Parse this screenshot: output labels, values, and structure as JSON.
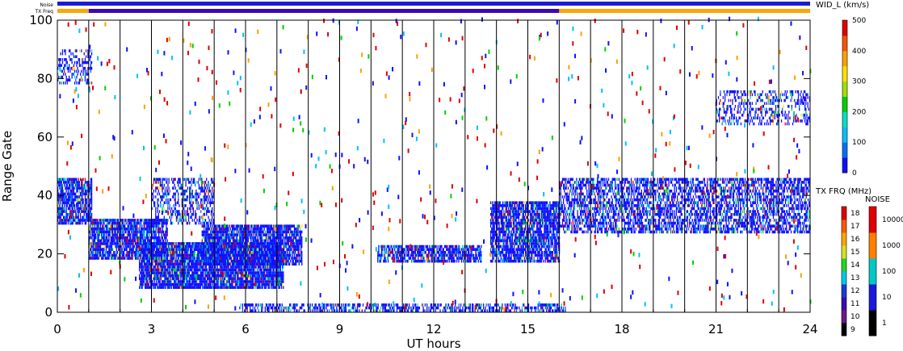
{
  "chart_data": {
    "type": "heatmap",
    "xlabel": "UT hours",
    "ylabel": "Range Gate",
    "xlim": [
      0,
      24
    ],
    "ylim": [
      0,
      100
    ],
    "x_ticks": [
      "0",
      "3",
      "6",
      "9",
      "12",
      "15",
      "18",
      "21",
      "24"
    ],
    "y_ticks": [
      "0",
      "20",
      "40",
      "60",
      "80",
      "100"
    ],
    "hour_lines": [
      1,
      2,
      3,
      4,
      5,
      6,
      7,
      8,
      9,
      10,
      11,
      12,
      13,
      14,
      15,
      16,
      17,
      18,
      19,
      20,
      21,
      22,
      23
    ],
    "top_bars": {
      "noise_label": "Noise",
      "txfreq_label": "TX Freq",
      "noise_color": "#1a1ad8",
      "txfreq_segments": [
        {
          "start": 0,
          "end": 1,
          "color": "#ffa500"
        },
        {
          "start": 1,
          "end": 16,
          "color": "#3a0ab0"
        },
        {
          "start": 16,
          "end": 24,
          "color": "#ffa500"
        }
      ]
    },
    "scatter_regions": [
      {
        "name": "low-gates-band",
        "t0": 5.8,
        "t1": 16.2,
        "g0": 0,
        "g1": 3,
        "density": 0.55
      },
      {
        "name": "early-band",
        "t0": 0,
        "t1": 1.1,
        "g0": 30,
        "g1": 46,
        "density": 0.8
      },
      {
        "name": "morning-band",
        "t0": 1,
        "t1": 3.5,
        "g0": 18,
        "g1": 32,
        "density": 0.85
      },
      {
        "name": "arc-lower",
        "t0": 2.6,
        "t1": 7.2,
        "g0": 8,
        "g1": 24,
        "density": 0.9
      },
      {
        "name": "arc-upper",
        "t0": 4.6,
        "t1": 7.8,
        "g0": 16,
        "g1": 30,
        "density": 0.85
      },
      {
        "name": "mid-diag",
        "t0": 3,
        "t1": 5,
        "g0": 30,
        "g1": 46,
        "density": 0.45
      },
      {
        "name": "noon-band",
        "t0": 10.2,
        "t1": 13.5,
        "g0": 17,
        "g1": 23,
        "density": 0.75
      },
      {
        "name": "afternoon-band",
        "t0": 13.8,
        "t1": 16,
        "g0": 17,
        "g1": 38,
        "density": 0.8
      },
      {
        "name": "evening-band",
        "t0": 16,
        "t1": 24,
        "g0": 27,
        "g1": 46,
        "density": 0.6
      },
      {
        "name": "late-upper",
        "t0": 21,
        "t1": 24,
        "g0": 64,
        "g1": 76,
        "density": 0.3
      },
      {
        "name": "early-upper",
        "t0": 0,
        "t1": 1.1,
        "g0": 78,
        "g1": 90,
        "density": 0.35
      }
    ],
    "colorbars": [
      {
        "title": "WID_L (km/s)",
        "ticks": [
          "0",
          "100",
          "200",
          "300",
          "400",
          "500"
        ],
        "colors": [
          "#1010ff",
          "#0070ff",
          "#00c0ff",
          "#00e0c0",
          "#00d000",
          "#a0e000",
          "#ffe000",
          "#ffa000",
          "#ff5000",
          "#e00000"
        ]
      },
      {
        "title": "TX FRQ (MHz)",
        "ticks": [
          "9",
          "10",
          "11",
          "12",
          "13",
          "14",
          "15",
          "16",
          "17",
          "18"
        ],
        "colors": [
          "#000000",
          "#6a1a8a",
          "#3a0ab0",
          "#1a3ad8",
          "#00c8e8",
          "#20d820",
          "#d8e020",
          "#ffa500",
          "#ff5a00",
          "#e00000"
        ]
      },
      {
        "title": "NOISE",
        "ticks": [
          "1",
          "10",
          "100",
          "1000",
          "10000"
        ],
        "colors": [
          "#000000",
          "#1a1ad8",
          "#00c8c8",
          "#ff8000",
          "#e00000"
        ]
      }
    ]
  }
}
